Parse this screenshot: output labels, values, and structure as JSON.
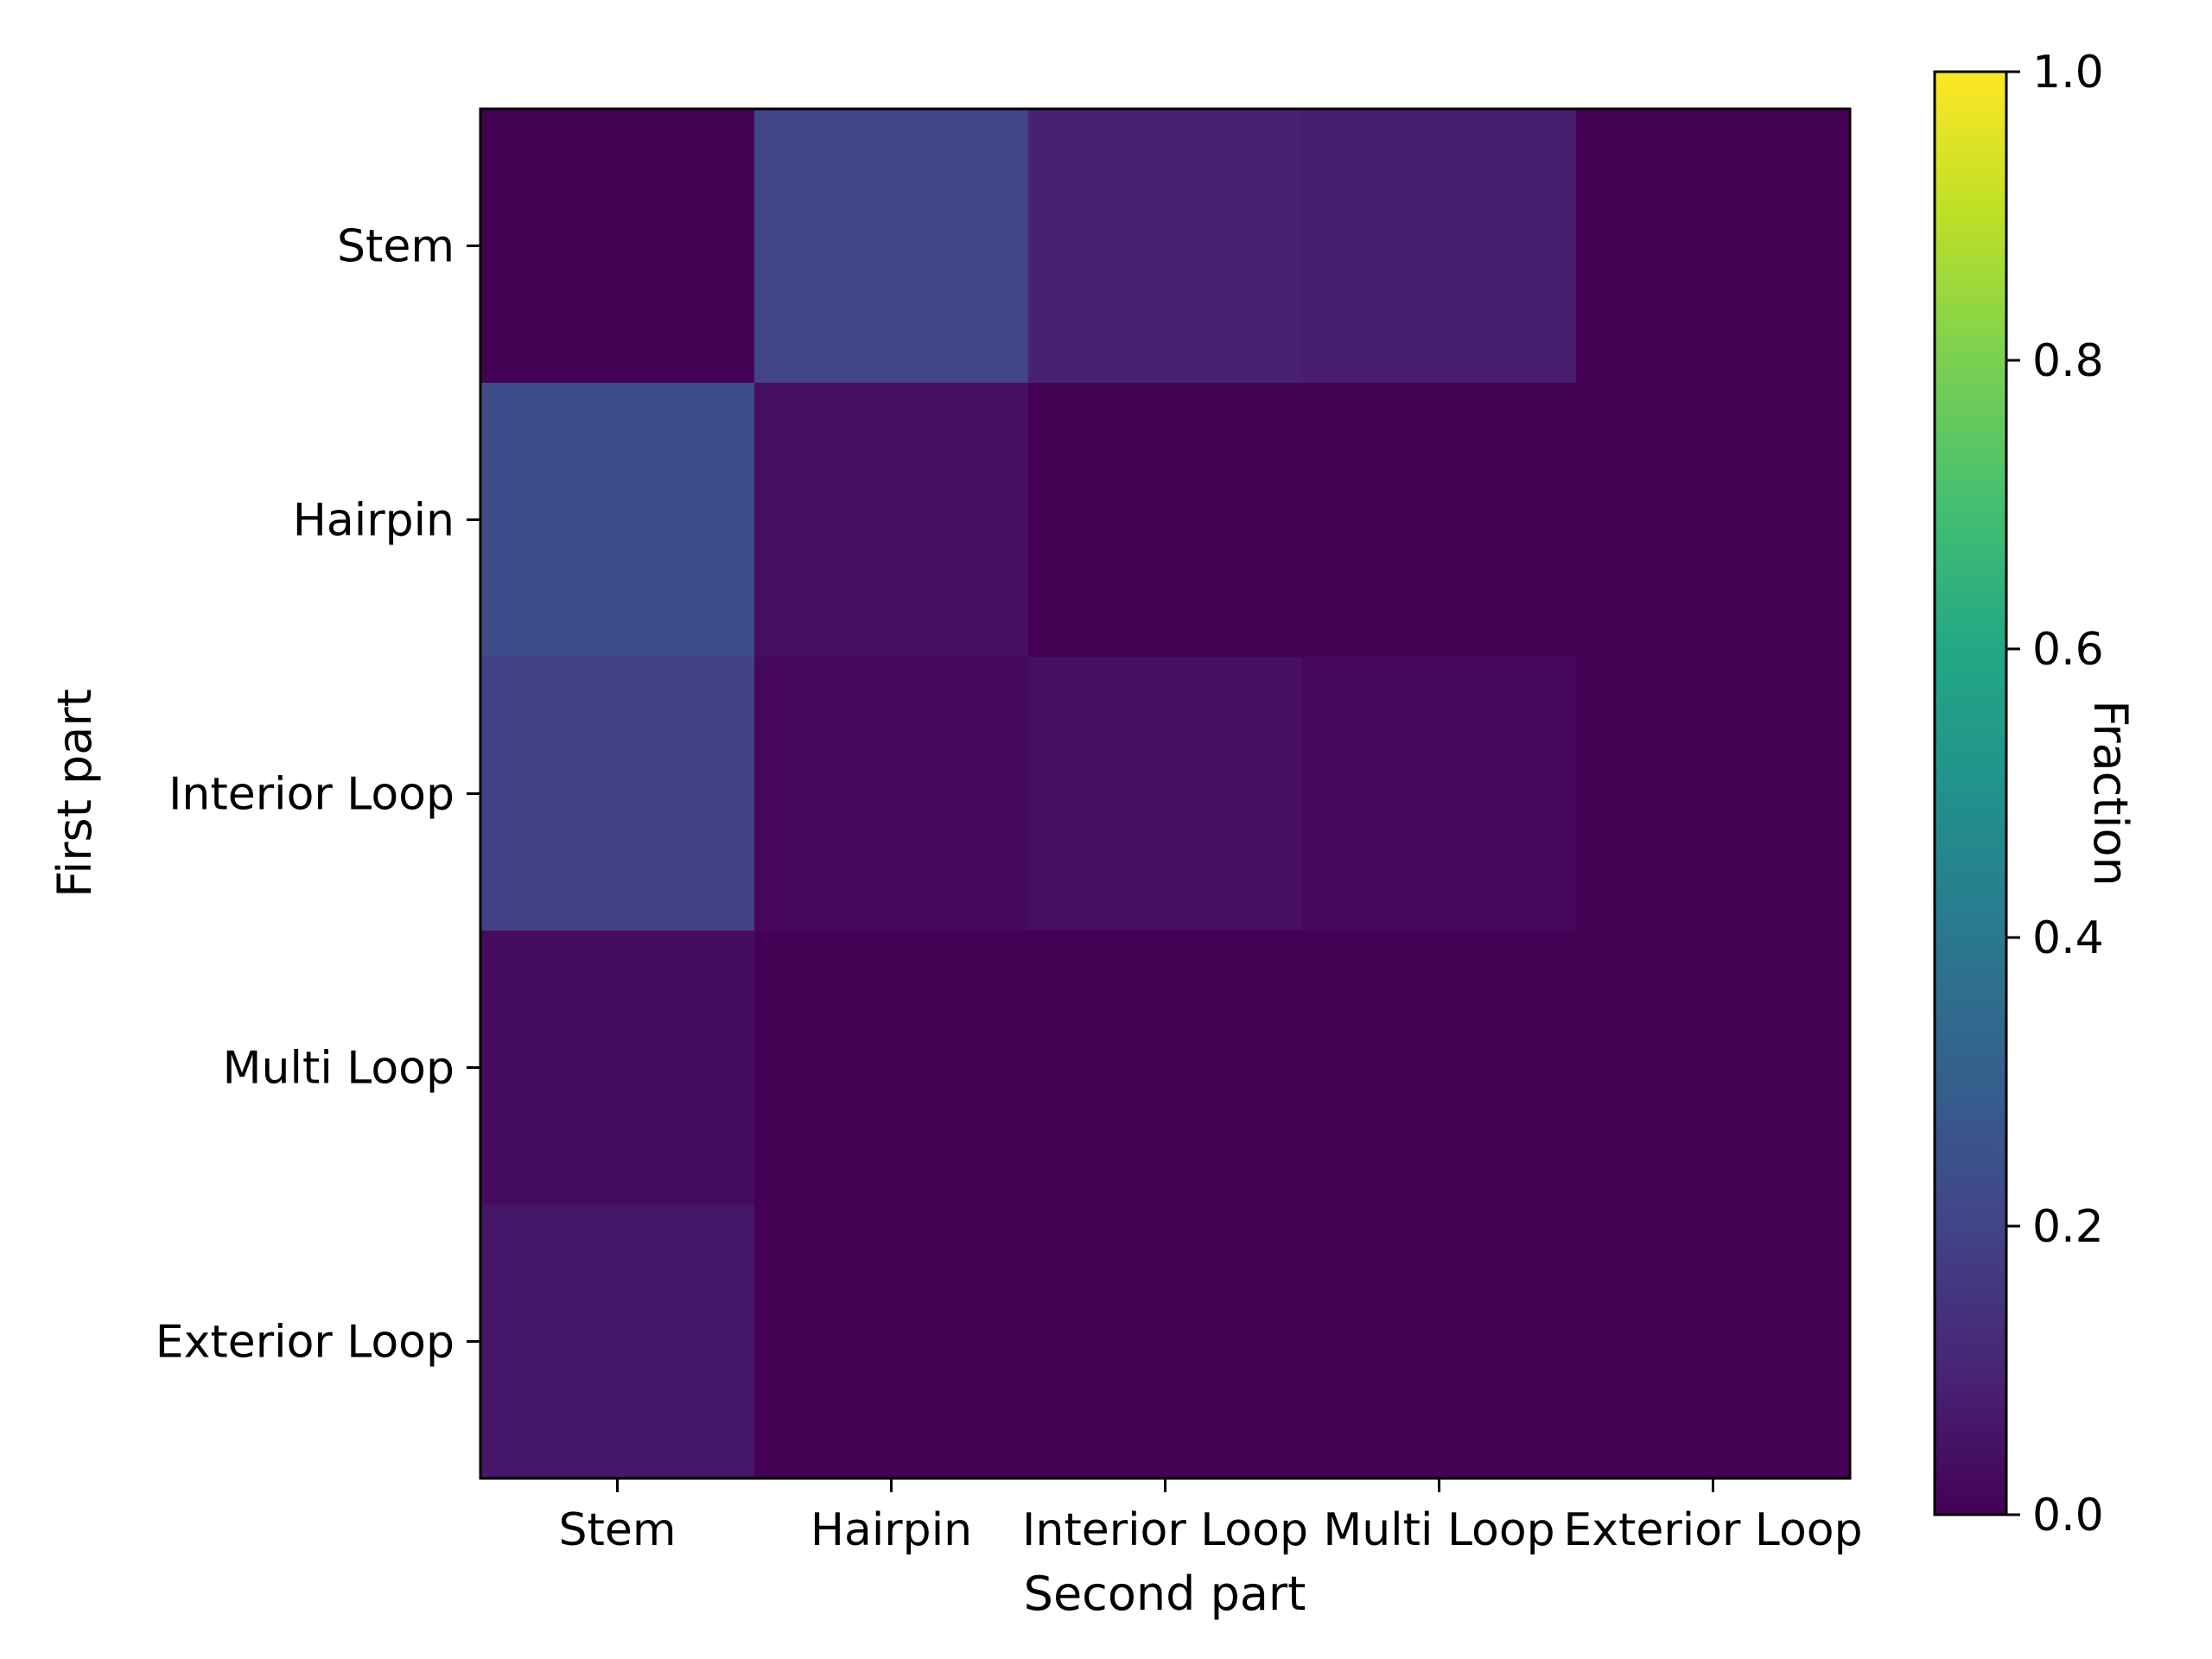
{
  "chart_data": {
    "type": "heatmap",
    "title": "",
    "xlabel": "Second part",
    "ylabel": "First part",
    "x_categories": [
      "Stem",
      "Hairpin",
      "Interior Loop",
      "Multi Loop",
      "Exterior Loop"
    ],
    "y_categories": [
      "Stem",
      "Hairpin",
      "Interior Loop",
      "Multi Loop",
      "Exterior Loop"
    ],
    "values": [
      [
        0.0,
        0.2,
        0.09,
        0.08,
        0.0
      ],
      [
        0.23,
        0.04,
        0.0,
        0.0,
        0.0
      ],
      [
        0.19,
        0.02,
        0.04,
        0.02,
        0.0
      ],
      [
        0.03,
        0.0,
        0.0,
        0.0,
        0.0
      ],
      [
        0.06,
        0.0,
        0.0,
        0.0,
        0.0
      ]
    ],
    "colormap": "viridis",
    "colorbar": {
      "label": "Fraction",
      "range": [
        0,
        1
      ],
      "ticks": [
        "0.0",
        "0.2",
        "0.4",
        "0.6",
        "0.8",
        "1.0"
      ]
    },
    "grid": false
  }
}
